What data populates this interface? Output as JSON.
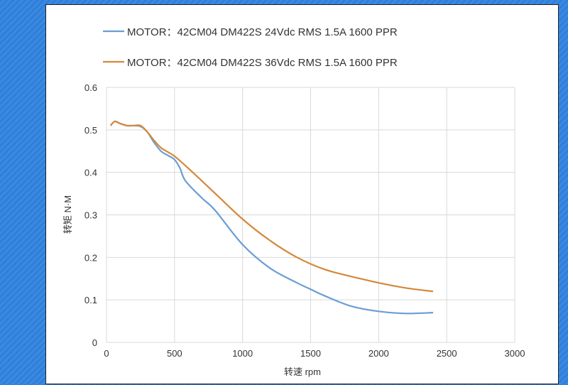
{
  "chart_data": {
    "type": "line",
    "xlabel": "转速 rpm",
    "ylabel": "转矩 N·M",
    "xlim": [
      0,
      3000
    ],
    "ylim": [
      0,
      0.6
    ],
    "xticks": [
      "0",
      "500",
      "1000",
      "1500",
      "2000",
      "2500",
      "3000"
    ],
    "yticks": [
      "0",
      "0.1",
      "0.2",
      "0.3",
      "0.4",
      "0.5",
      "0.6"
    ],
    "grid": true,
    "legend_position": "top",
    "series": [
      {
        "name": "MOTOR：42CM04 DM422S 24Vdc RMS 1.5A  1600 PPR",
        "color": "#6a9ed4",
        "x": [
          30,
          60,
          100,
          150,
          200,
          250,
          300,
          350,
          400,
          450,
          500,
          540,
          580,
          700,
          800,
          1000,
          1200,
          1400,
          1500,
          1600,
          1800,
          2000,
          2200,
          2400
        ],
        "y": [
          0.51,
          0.52,
          0.515,
          0.51,
          0.51,
          0.508,
          0.495,
          0.47,
          0.45,
          0.44,
          0.43,
          0.41,
          0.38,
          0.34,
          0.31,
          0.23,
          0.175,
          0.14,
          0.125,
          0.11,
          0.085,
          0.073,
          0.068,
          0.07
        ]
      },
      {
        "name": "MOTOR：42CM04 DM422S 36Vdc RMS 1.5A  1600 PPR",
        "color": "#d4883a",
        "x": [
          30,
          60,
          100,
          150,
          200,
          250,
          300,
          350,
          400,
          450,
          500,
          600,
          800,
          1000,
          1200,
          1400,
          1600,
          1800,
          2000,
          2200,
          2400
        ],
        "y": [
          0.51,
          0.52,
          0.515,
          0.51,
          0.51,
          0.51,
          0.495,
          0.475,
          0.458,
          0.448,
          0.438,
          0.41,
          0.35,
          0.29,
          0.24,
          0.2,
          0.172,
          0.155,
          0.14,
          0.128,
          0.12
        ]
      }
    ]
  }
}
